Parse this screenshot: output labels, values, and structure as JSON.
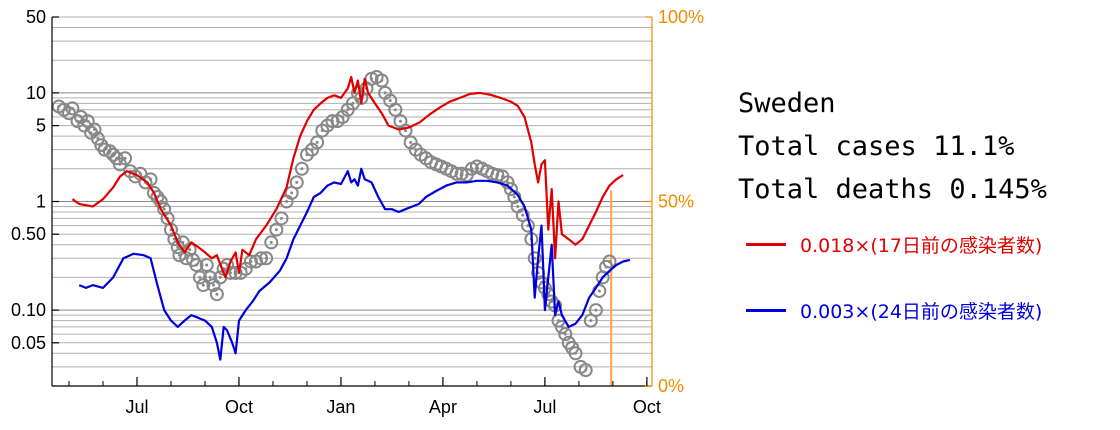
{
  "info": {
    "country": "Sweden",
    "total_cases": "Total cases 11.1%",
    "total_deaths": "Total deaths 0.145%"
  },
  "legend": [
    {
      "label": "0.018×(17日前の感染者数)",
      "color": "#e00000"
    },
    {
      "label": "0.003×(24日前の感染者数)",
      "color": "#0000dd"
    }
  ],
  "chart_data": {
    "type": "line",
    "y_scale": "log",
    "ylim": [
      0.02,
      50
    ],
    "left_ticks": [
      {
        "value": 50,
        "label": "50"
      },
      {
        "value": 10,
        "label": "10"
      },
      {
        "value": 5,
        "label": "5"
      },
      {
        "value": 1,
        "label": "1"
      },
      {
        "value": 0.5,
        "label": "0.50"
      },
      {
        "value": 0.1,
        "label": "0.10"
      },
      {
        "value": 0.05,
        "label": "0.05"
      }
    ],
    "right_axis": {
      "color": "#f08c00",
      "range": [
        0,
        100
      ],
      "ticks": [
        {
          "value": 100,
          "label": "100%"
        },
        {
          "value": 50,
          "label": "50%"
        },
        {
          "value": 0,
          "label": "0%"
        }
      ]
    },
    "x_ticks": [
      {
        "x": 2.5,
        "label": "Jul"
      },
      {
        "x": 5.5,
        "label": "Oct"
      },
      {
        "x": 8.5,
        "label": "Jan"
      },
      {
        "x": 11.5,
        "label": "Apr"
      },
      {
        "x": 14.5,
        "label": "Jul"
      },
      {
        "x": 17.5,
        "label": "Oct"
      }
    ],
    "x_range": [
      0,
      17.65
    ],
    "grid": true,
    "series": [
      {
        "color": "#e00000",
        "points": [
          [
            0.6,
            1.05
          ],
          [
            0.8,
            0.95
          ],
          [
            1.2,
            0.9
          ],
          [
            1.5,
            1.05
          ],
          [
            1.8,
            1.35
          ],
          [
            2.0,
            1.7
          ],
          [
            2.2,
            1.9
          ],
          [
            2.5,
            1.75
          ],
          [
            2.8,
            1.5
          ],
          [
            3.0,
            1.2
          ],
          [
            3.2,
            0.85
          ],
          [
            3.5,
            0.6
          ],
          [
            3.7,
            0.42
          ],
          [
            3.9,
            0.34
          ],
          [
            4.1,
            0.42
          ],
          [
            4.3,
            0.38
          ],
          [
            4.5,
            0.34
          ],
          [
            4.7,
            0.3
          ],
          [
            4.85,
            0.32
          ],
          [
            5.0,
            0.24
          ],
          [
            5.1,
            0.2
          ],
          [
            5.25,
            0.28
          ],
          [
            5.4,
            0.34
          ],
          [
            5.5,
            0.22
          ],
          [
            5.6,
            0.36
          ],
          [
            5.8,
            0.32
          ],
          [
            6.0,
            0.45
          ],
          [
            6.3,
            0.6
          ],
          [
            6.6,
            0.85
          ],
          [
            6.9,
            1.35
          ],
          [
            7.1,
            2.5
          ],
          [
            7.3,
            4.0
          ],
          [
            7.5,
            5.5
          ],
          [
            7.7,
            7.0
          ],
          [
            7.9,
            8.0
          ],
          [
            8.1,
            9.0
          ],
          [
            8.3,
            9.5
          ],
          [
            8.5,
            9.0
          ],
          [
            8.7,
            11.0
          ],
          [
            8.8,
            14.0
          ],
          [
            8.9,
            10.0
          ],
          [
            9.0,
            13.0
          ],
          [
            9.1,
            8.0
          ],
          [
            9.2,
            13.5
          ],
          [
            9.3,
            10.0
          ],
          [
            9.5,
            8.0
          ],
          [
            9.7,
            6.5
          ],
          [
            9.9,
            5.0
          ],
          [
            10.2,
            4.6
          ],
          [
            10.5,
            4.8
          ],
          [
            10.8,
            5.3
          ],
          [
            11.1,
            6.3
          ],
          [
            11.4,
            7.3
          ],
          [
            11.7,
            8.3
          ],
          [
            12.0,
            9.0
          ],
          [
            12.3,
            9.8
          ],
          [
            12.6,
            10.0
          ],
          [
            12.9,
            9.6
          ],
          [
            13.2,
            9.0
          ],
          [
            13.5,
            8.3
          ],
          [
            13.7,
            7.6
          ],
          [
            13.9,
            6.0
          ],
          [
            14.1,
            3.5
          ],
          [
            14.2,
            2.2
          ],
          [
            14.3,
            1.5
          ],
          [
            14.4,
            2.2
          ],
          [
            14.5,
            2.4
          ],
          [
            14.6,
            0.55
          ],
          [
            14.7,
            1.3
          ],
          [
            14.8,
            0.3
          ],
          [
            14.9,
            1.0
          ],
          [
            15.0,
            0.5
          ],
          [
            15.2,
            0.45
          ],
          [
            15.4,
            0.4
          ],
          [
            15.6,
            0.45
          ],
          [
            15.8,
            0.6
          ],
          [
            16.0,
            0.8
          ],
          [
            16.2,
            1.1
          ],
          [
            16.4,
            1.4
          ],
          [
            16.6,
            1.6
          ],
          [
            16.8,
            1.75
          ]
        ]
      },
      {
        "color": "#0000dd",
        "points": [
          [
            0.8,
            0.17
          ],
          [
            1.0,
            0.16
          ],
          [
            1.2,
            0.17
          ],
          [
            1.5,
            0.16
          ],
          [
            1.8,
            0.2
          ],
          [
            2.1,
            0.3
          ],
          [
            2.4,
            0.33
          ],
          [
            2.7,
            0.32
          ],
          [
            2.9,
            0.3
          ],
          [
            3.1,
            0.17
          ],
          [
            3.3,
            0.1
          ],
          [
            3.5,
            0.08
          ],
          [
            3.7,
            0.07
          ],
          [
            3.9,
            0.08
          ],
          [
            4.1,
            0.09
          ],
          [
            4.3,
            0.085
          ],
          [
            4.5,
            0.08
          ],
          [
            4.7,
            0.07
          ],
          [
            4.85,
            0.05
          ],
          [
            4.95,
            0.035
          ],
          [
            5.05,
            0.07
          ],
          [
            5.15,
            0.065
          ],
          [
            5.3,
            0.05
          ],
          [
            5.4,
            0.04
          ],
          [
            5.5,
            0.08
          ],
          [
            5.7,
            0.1
          ],
          [
            5.9,
            0.12
          ],
          [
            6.1,
            0.15
          ],
          [
            6.4,
            0.18
          ],
          [
            6.7,
            0.23
          ],
          [
            6.9,
            0.3
          ],
          [
            7.1,
            0.45
          ],
          [
            7.3,
            0.6
          ],
          [
            7.5,
            0.8
          ],
          [
            7.7,
            1.1
          ],
          [
            7.9,
            1.2
          ],
          [
            8.1,
            1.4
          ],
          [
            8.3,
            1.5
          ],
          [
            8.5,
            1.45
          ],
          [
            8.7,
            1.9
          ],
          [
            8.8,
            1.5
          ],
          [
            8.9,
            1.6
          ],
          [
            9.0,
            1.4
          ],
          [
            9.1,
            2.0
          ],
          [
            9.2,
            1.6
          ],
          [
            9.4,
            1.5
          ],
          [
            9.6,
            1.1
          ],
          [
            9.8,
            0.85
          ],
          [
            10.0,
            0.85
          ],
          [
            10.2,
            0.8
          ],
          [
            10.4,
            0.85
          ],
          [
            10.6,
            0.9
          ],
          [
            10.8,
            0.95
          ],
          [
            11.0,
            1.1
          ],
          [
            11.3,
            1.25
          ],
          [
            11.6,
            1.4
          ],
          [
            11.9,
            1.5
          ],
          [
            12.2,
            1.5
          ],
          [
            12.5,
            1.55
          ],
          [
            12.8,
            1.55
          ],
          [
            13.1,
            1.5
          ],
          [
            13.4,
            1.4
          ],
          [
            13.7,
            1.15
          ],
          [
            13.9,
            0.9
          ],
          [
            14.1,
            0.55
          ],
          [
            14.2,
            0.13
          ],
          [
            14.3,
            0.3
          ],
          [
            14.4,
            0.6
          ],
          [
            14.5,
            0.1
          ],
          [
            14.6,
            0.2
          ],
          [
            14.7,
            0.4
          ],
          [
            14.8,
            0.09
          ],
          [
            14.9,
            0.12
          ],
          [
            15.0,
            0.09
          ],
          [
            15.2,
            0.07
          ],
          [
            15.4,
            0.075
          ],
          [
            15.6,
            0.09
          ],
          [
            15.8,
            0.13
          ],
          [
            16.0,
            0.16
          ],
          [
            16.2,
            0.2
          ],
          [
            16.4,
            0.23
          ],
          [
            16.6,
            0.26
          ],
          [
            16.8,
            0.28
          ],
          [
            17.0,
            0.29
          ]
        ]
      }
    ],
    "markers": {
      "color": "#888888",
      "points": [
        [
          0.2,
          7.5
        ],
        [
          0.35,
          7.0
        ],
        [
          0.5,
          6.5
        ],
        [
          0.6,
          7.2
        ],
        [
          0.75,
          5.5
        ],
        [
          0.85,
          6.0
        ],
        [
          0.95,
          5.0
        ],
        [
          1.05,
          5.5
        ],
        [
          1.15,
          4.3
        ],
        [
          1.25,
          4.6
        ],
        [
          1.35,
          3.8
        ],
        [
          1.45,
          3.3
        ],
        [
          1.55,
          3.0
        ],
        [
          1.7,
          2.9
        ],
        [
          1.8,
          2.7
        ],
        [
          1.9,
          2.5
        ],
        [
          2.0,
          2.2
        ],
        [
          2.15,
          2.5
        ],
        [
          2.3,
          1.9
        ],
        [
          2.45,
          1.7
        ],
        [
          2.6,
          1.8
        ],
        [
          2.75,
          1.5
        ],
        [
          2.9,
          1.6
        ],
        [
          3.0,
          1.2
        ],
        [
          3.1,
          1.1
        ],
        [
          3.2,
          1.0
        ],
        [
          3.3,
          0.85
        ],
        [
          3.4,
          0.7
        ],
        [
          3.5,
          0.55
        ],
        [
          3.6,
          0.45
        ],
        [
          3.7,
          0.38
        ],
        [
          3.75,
          0.32
        ],
        [
          3.85,
          0.42
        ],
        [
          3.95,
          0.3
        ],
        [
          4.05,
          0.36
        ],
        [
          4.15,
          0.29
        ],
        [
          4.25,
          0.26
        ],
        [
          4.35,
          0.2
        ],
        [
          4.45,
          0.17
        ],
        [
          4.55,
          0.26
        ],
        [
          4.65,
          0.2
        ],
        [
          4.75,
          0.17
        ],
        [
          4.85,
          0.14
        ],
        [
          4.95,
          0.2
        ],
        [
          5.05,
          0.24
        ],
        [
          5.15,
          0.26
        ],
        [
          5.25,
          0.22
        ],
        [
          5.4,
          0.22
        ],
        [
          5.55,
          0.22
        ],
        [
          5.7,
          0.24
        ],
        [
          5.85,
          0.28
        ],
        [
          6.0,
          0.28
        ],
        [
          6.15,
          0.3
        ],
        [
          6.3,
          0.3
        ],
        [
          6.45,
          0.42
        ],
        [
          6.6,
          0.55
        ],
        [
          6.75,
          0.7
        ],
        [
          6.9,
          1.0
        ],
        [
          7.05,
          1.2
        ],
        [
          7.2,
          1.5
        ],
        [
          7.35,
          2.0
        ],
        [
          7.5,
          2.7
        ],
        [
          7.65,
          3.0
        ],
        [
          7.8,
          3.5
        ],
        [
          7.95,
          4.5
        ],
        [
          8.1,
          5.0
        ],
        [
          8.25,
          5.5
        ],
        [
          8.4,
          5.5
        ],
        [
          8.55,
          6.0
        ],
        [
          8.7,
          7.0
        ],
        [
          8.85,
          8.0
        ],
        [
          9.0,
          10.0
        ],
        [
          9.1,
          9.0
        ],
        [
          9.25,
          11.0
        ],
        [
          9.4,
          13.5
        ],
        [
          9.55,
          14.0
        ],
        [
          9.7,
          13.0
        ],
        [
          9.8,
          10.0
        ],
        [
          9.95,
          8.5
        ],
        [
          10.1,
          7.0
        ],
        [
          10.25,
          5.5
        ],
        [
          10.4,
          4.5
        ],
        [
          10.55,
          3.5
        ],
        [
          10.7,
          3.0
        ],
        [
          10.85,
          2.7
        ],
        [
          11.0,
          2.5
        ],
        [
          11.15,
          2.3
        ],
        [
          11.3,
          2.2
        ],
        [
          11.45,
          2.1
        ],
        [
          11.6,
          2.0
        ],
        [
          11.75,
          1.9
        ],
        [
          11.9,
          1.8
        ],
        [
          12.05,
          1.8
        ],
        [
          12.2,
          1.75
        ],
        [
          12.35,
          2.0
        ],
        [
          12.5,
          2.1
        ],
        [
          12.65,
          2.0
        ],
        [
          12.8,
          1.9
        ],
        [
          12.95,
          1.8
        ],
        [
          13.1,
          1.75
        ],
        [
          13.25,
          1.7
        ],
        [
          13.4,
          1.5
        ],
        [
          13.5,
          1.3
        ],
        [
          13.6,
          1.1
        ],
        [
          13.7,
          0.9
        ],
        [
          13.85,
          0.75
        ],
        [
          14.0,
          0.6
        ],
        [
          14.1,
          0.45
        ],
        [
          14.2,
          0.3
        ],
        [
          14.3,
          0.22
        ],
        [
          14.4,
          0.18
        ],
        [
          14.5,
          0.16
        ],
        [
          14.6,
          0.14
        ],
        [
          14.7,
          0.12
        ],
        [
          14.8,
          0.11
        ],
        [
          14.9,
          0.08
        ],
        [
          15.0,
          0.07
        ],
        [
          15.1,
          0.06
        ],
        [
          15.2,
          0.05
        ],
        [
          15.3,
          0.045
        ],
        [
          15.4,
          0.04
        ],
        [
          15.55,
          0.03
        ],
        [
          15.7,
          0.028
        ],
        [
          15.85,
          0.08
        ],
        [
          16.0,
          0.1
        ],
        [
          16.1,
          0.15
        ],
        [
          16.2,
          0.2
        ],
        [
          16.3,
          0.25
        ],
        [
          16.4,
          0.28
        ]
      ]
    },
    "orange_bar": {
      "x": 16.45,
      "value_percent": 53,
      "color": "#f5a050"
    }
  }
}
